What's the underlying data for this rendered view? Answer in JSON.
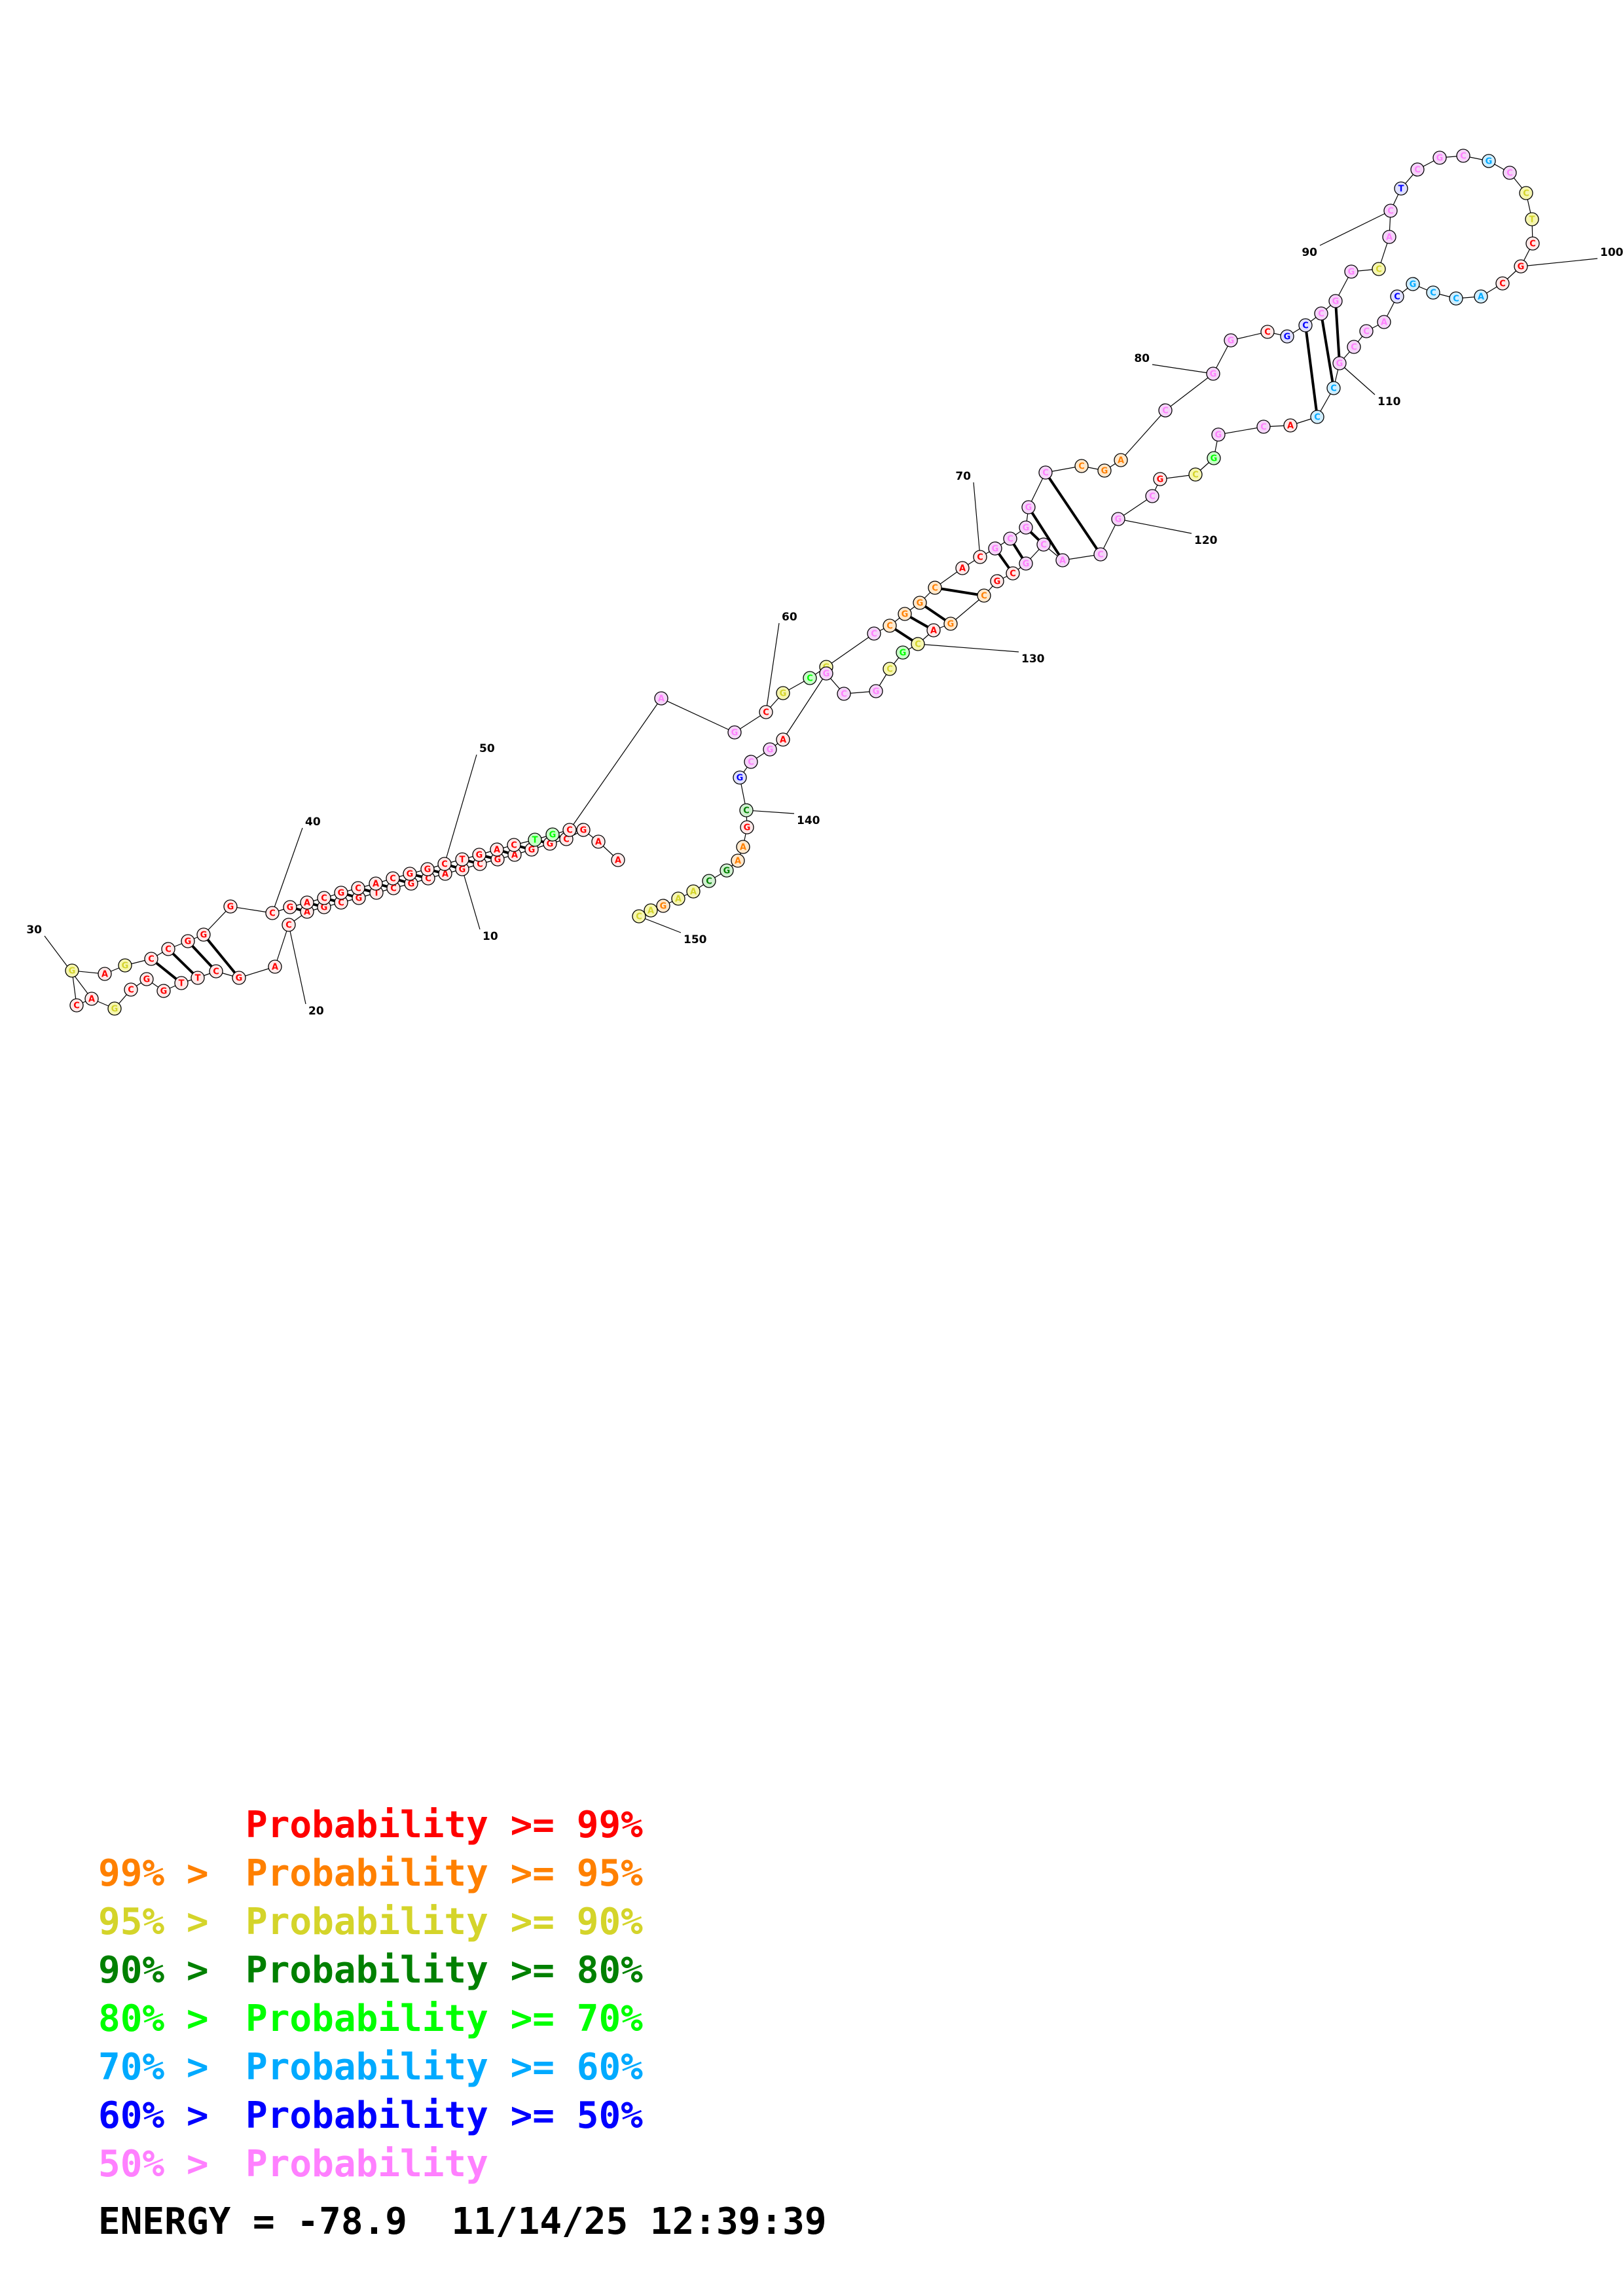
{
  "structure": {
    "sequence_labels": [
      "A",
      "A",
      "G",
      "C",
      "G",
      "G",
      "A",
      "G",
      "C",
      "G",
      "A",
      "C",
      "G",
      "C",
      "T",
      "G",
      "C",
      "G",
      "A",
      "C",
      "A",
      "G",
      "C",
      "T",
      "T",
      "G",
      "G",
      "C",
      "G",
      "A",
      "C",
      "G",
      "A",
      "G",
      "C",
      "C",
      "G",
      "G",
      "G",
      "C",
      "G",
      "A",
      "C",
      "G",
      "C",
      "A",
      "C",
      "G",
      "G",
      "C",
      "T",
      "G",
      "A",
      "C",
      "T",
      "G",
      "C",
      "A",
      "G",
      "C",
      "G",
      "C",
      "G",
      "C",
      "C",
      "G",
      "G",
      "C",
      "A",
      "C",
      "G",
      "C",
      "G",
      "G",
      "C",
      "C",
      "G",
      "A",
      "C",
      "G",
      "G",
      "C",
      "G",
      "C",
      "C",
      "G",
      "G",
      "C",
      "A",
      "C",
      "T",
      "C",
      "G",
      "C",
      "G",
      "C",
      "C",
      "T",
      "C",
      "G",
      "C",
      "A",
      "C",
      "C",
      "G",
      "C",
      "A",
      "C",
      "C",
      "G",
      "C",
      "C",
      "A",
      "C",
      "G",
      "G",
      "C",
      "G",
      "C",
      "G",
      "C",
      "A",
      "C",
      "G",
      "C",
      "G",
      "C",
      "G",
      "A",
      "C",
      "G",
      "C",
      "G",
      "C",
      "G",
      "A",
      "G",
      "C",
      "G",
      "C",
      "G",
      "A",
      "A",
      "G",
      "C",
      "A",
      "A",
      "G",
      "A",
      "C"
    ],
    "position_labels": [
      "10",
      "20",
      "30",
      "40",
      "50",
      "60",
      "70",
      "80",
      "90",
      "100",
      "110",
      "120",
      "130",
      "140",
      "150"
    ]
  },
  "legend": {
    "rows": [
      {
        "left": "",
        "right": "Probability >= 99%",
        "color": "#ff0000"
      },
      {
        "left": "99% >",
        "right": "Probability >= 95%",
        "color": "#ff8000"
      },
      {
        "left": "95% >",
        "right": "Probability >= 90%",
        "color": "#d4d42a"
      },
      {
        "left": "90% >",
        "right": "Probability >= 80%",
        "color": "#008000"
      },
      {
        "left": "80% >",
        "right": "Probability >= 70%",
        "color": "#00ff00"
      },
      {
        "left": "70% >",
        "right": "Probability >= 60%",
        "color": "#00aaff"
      },
      {
        "left": "60% >",
        "right": "Probability >= 50%",
        "color": "#0000ff"
      },
      {
        "left": "50% >",
        "right": "Probability",
        "color": "#ff80ff"
      }
    ]
  },
  "energy": {
    "label": "ENERGY = -78.9",
    "timestamp": "11/14/25 12:39:39"
  },
  "colors": {
    "p99": "#ff0000",
    "p95": "#ff8000",
    "p90": "#d4d42a",
    "p80": "#008000",
    "p70": "#00ff00",
    "p60": "#00aaff",
    "p50": "#0000ff",
    "plow": "#ff80ff",
    "fill_p99": "#ffe8e8",
    "fill_p95": "#ffe8cc",
    "fill_p90": "#f6f6b0",
    "fill_p80": "#d0f0d0",
    "fill_p70": "#c8ffc8",
    "fill_p60": "#d0eeff",
    "fill_p50": "#e0e0ff",
    "fill_plow": "#f4d4f8"
  }
}
